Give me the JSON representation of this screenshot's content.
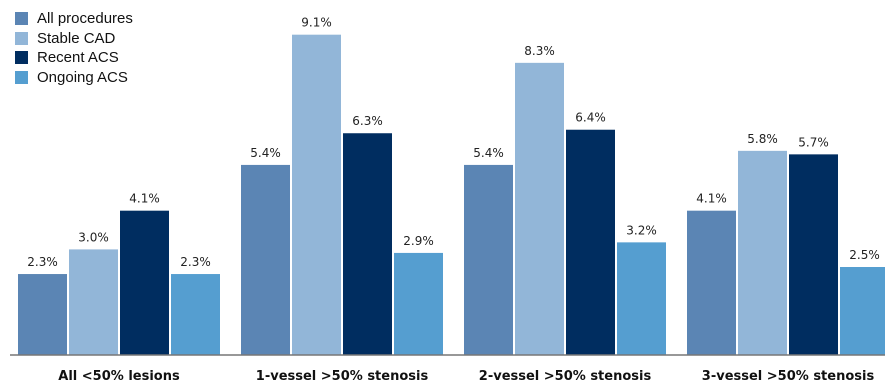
{
  "chart_data": {
    "type": "bar",
    "categories": [
      "All <50% lesions",
      "1-vessel >50% stenosis",
      "2-vessel >50% stenosis",
      "3-vessel >50% stenosis"
    ],
    "series": [
      {
        "name": "All procedures",
        "color": "#5b85b4",
        "values": [
          2.3,
          5.4,
          5.4,
          4.1
        ],
        "labels": [
          "2.3%",
          "5.4%",
          "5.4%",
          "4.1%"
        ]
      },
      {
        "name": "Stable CAD",
        "color": "#92b6d8",
        "values": [
          3.0,
          9.1,
          8.3,
          5.8
        ],
        "labels": [
          "3.0%",
          "9.1%",
          "8.3%",
          "5.8%"
        ]
      },
      {
        "name": "Recent ACS",
        "color": "#002d60",
        "values": [
          4.1,
          6.3,
          6.4,
          5.7
        ],
        "labels": [
          "4.1%",
          "6.3%",
          "6.4%",
          "5.7%"
        ]
      },
      {
        "name": "Ongoing ACS",
        "color": "#559ed0",
        "values": [
          2.3,
          2.9,
          3.2,
          2.5
        ],
        "labels": [
          "2.3%",
          "2.9%",
          "3.2%",
          "2.5%"
        ]
      }
    ],
    "ylim": [
      0,
      10
    ],
    "grid": false,
    "legend_position": "top-left",
    "axis_color": "#777777"
  }
}
